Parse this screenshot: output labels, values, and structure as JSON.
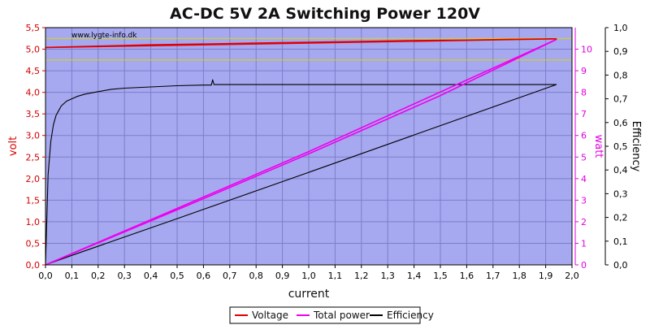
{
  "chart_data": {
    "type": "line",
    "title": "AC-DC 5V 2A Switching Power 120V",
    "watermark": "www.lygte-info.dk",
    "xlabel": "current",
    "xlim": [
      0,
      2.0
    ],
    "x_ticks": [
      "0,0",
      "0,1",
      "0,2",
      "0,3",
      "0,4",
      "0,5",
      "0,6",
      "0,7",
      "0,8",
      "0,9",
      "1,0",
      "1,1",
      "1,2",
      "1,3",
      "1,4",
      "1,5",
      "1,6",
      "1,7",
      "1,8",
      "1,9",
      "2,0"
    ],
    "y_left": {
      "label": "volt",
      "color": "#d40000",
      "lim": [
        0,
        5.5
      ],
      "ticks": [
        "0,0",
        "0,5",
        "1,0",
        "1,5",
        "2,0",
        "2,5",
        "3,0",
        "3,5",
        "4,0",
        "4,5",
        "5,0",
        "5,5"
      ]
    },
    "y_right1": {
      "label": "watt",
      "color": "#e000e0",
      "lim": [
        0,
        11
      ],
      "ticks": [
        "0",
        "1",
        "2",
        "3",
        "4",
        "5",
        "6",
        "7",
        "8",
        "9",
        "10"
      ]
    },
    "y_right2": {
      "label": "Efficiency",
      "color": "#000000",
      "lim": [
        0,
        1.0
      ],
      "ticks": [
        "0,0",
        "0,1",
        "0,2",
        "0,3",
        "0,4",
        "0,5",
        "0,6",
        "0,7",
        "0,8",
        "0,9",
        "1,0"
      ]
    },
    "ref_lines_volt": [
      4.75,
      5.25
    ],
    "colors": {
      "plot_bg": "#a6a8f0",
      "grid": "#7c7ec8",
      "ref_line": "#d8d800"
    },
    "series": [
      {
        "name": "Voltage",
        "axis": "y_left",
        "color": "#e00000",
        "x": [
          0.0,
          0.2,
          0.4,
          0.6,
          0.8,
          1.0,
          1.2,
          1.4,
          1.6,
          1.8,
          1.94,
          1.94,
          0.0
        ],
        "y": [
          5.04,
          5.07,
          5.1,
          5.12,
          5.14,
          5.16,
          5.18,
          5.2,
          5.21,
          5.23,
          5.24,
          5.24,
          5.04
        ]
      },
      {
        "name": "Total power",
        "axis": "y_right1",
        "color": "#ee00ee",
        "x": [
          0.0,
          0.5,
          1.0,
          1.5,
          1.94,
          1.94,
          1.0,
          0.5,
          0.0
        ],
        "y": [
          0.0,
          2.55,
          5.15,
          7.85,
          10.45,
          10.45,
          5.25,
          2.62,
          0.0
        ]
      },
      {
        "name": "Efficiency",
        "axis": "y_right2",
        "color": "#000000",
        "x": [
          0.0,
          0.01,
          0.02,
          0.03,
          0.04,
          0.05,
          0.06,
          0.08,
          0.1,
          0.12,
          0.15,
          0.2,
          0.25,
          0.3,
          0.4,
          0.5,
          0.6,
          0.63,
          0.635,
          0.64,
          0.7,
          0.9,
          1.0,
          1.2,
          1.4,
          1.6,
          1.8,
          1.94,
          1.94,
          1.0,
          0.5,
          0.1,
          0.0
        ],
        "y": [
          0.0,
          0.38,
          0.52,
          0.59,
          0.63,
          0.65,
          0.67,
          0.69,
          0.7,
          0.71,
          0.72,
          0.73,
          0.74,
          0.745,
          0.75,
          0.755,
          0.758,
          0.758,
          0.78,
          0.76,
          0.76,
          0.76,
          0.76,
          0.76,
          0.76,
          0.76,
          0.76,
          0.76,
          0.76,
          0.39,
          0.195,
          0.04,
          0.0
        ]
      }
    ],
    "legend": [
      "Voltage",
      "Total power",
      "Efficiency"
    ],
    "legend_position": "bottom-center",
    "grid": true
  }
}
